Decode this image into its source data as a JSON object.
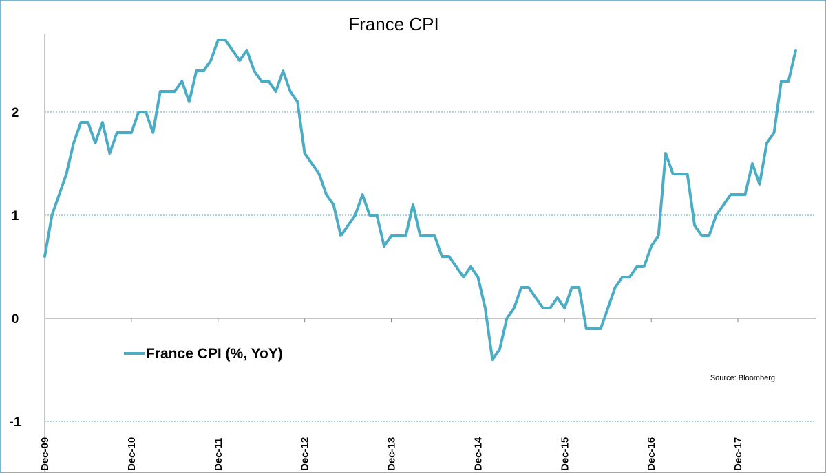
{
  "chart_data": {
    "type": "line",
    "title": "France CPI",
    "source": "Source: Bloomberg",
    "ylim": [
      -1,
      2.7
    ],
    "yticks": [
      -1,
      0,
      1,
      2
    ],
    "grid": "horizontal dashed",
    "legend_placement": "center-left",
    "x_start": "Dec-09",
    "x_end": "Jul-18",
    "x_tick_labels": [
      "Dec-09",
      "Dec-10",
      "Dec-11",
      "Dec-12",
      "Dec-13",
      "Dec-14",
      "Dec-15",
      "Dec-16",
      "Dec-17"
    ],
    "series": [
      {
        "name": "France CPI (%, YoY)",
        "color": "#4bacc6",
        "values": [
          0.6,
          1.0,
          1.2,
          1.4,
          1.7,
          1.9,
          1.9,
          1.7,
          1.9,
          1.6,
          1.8,
          1.8,
          1.8,
          2.0,
          2.0,
          1.8,
          2.2,
          2.2,
          2.2,
          2.3,
          2.1,
          2.4,
          2.4,
          2.5,
          2.7,
          2.7,
          2.6,
          2.5,
          2.6,
          2.4,
          2.3,
          2.3,
          2.2,
          2.4,
          2.2,
          2.1,
          1.6,
          1.5,
          1.4,
          1.2,
          1.1,
          0.8,
          0.9,
          1.0,
          1.2,
          1.0,
          1.0,
          0.7,
          0.8,
          0.8,
          0.8,
          1.1,
          0.8,
          0.8,
          0.8,
          0.6,
          0.6,
          0.5,
          0.4,
          0.5,
          0.4,
          0.1,
          -0.4,
          -0.3,
          0.0,
          0.1,
          0.3,
          0.3,
          0.2,
          0.1,
          0.1,
          0.2,
          0.1,
          0.3,
          0.3,
          -0.1,
          -0.1,
          -0.1,
          0.1,
          0.3,
          0.4,
          0.4,
          0.5,
          0.5,
          0.7,
          0.8,
          1.6,
          1.4,
          1.4,
          1.4,
          0.9,
          0.8,
          0.8,
          1.0,
          1.1,
          1.2,
          1.2,
          1.2,
          1.5,
          1.3,
          1.7,
          1.8,
          2.3,
          2.3,
          2.6
        ]
      }
    ]
  }
}
